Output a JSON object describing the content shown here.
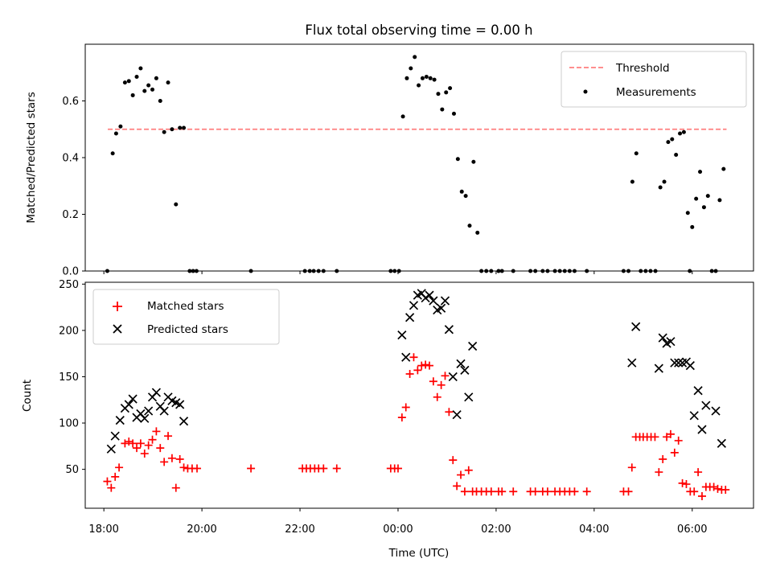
{
  "title": "Flux total observing time = 0.00 h",
  "chart_data": [
    {
      "type": "scatter",
      "panel": "top",
      "ylabel": "Matched/Predicted stars",
      "xlabel": "",
      "ylim": [
        0,
        0.8
      ],
      "yticks": [
        0.0,
        0.2,
        0.4,
        0.6
      ],
      "ytick_labels": [
        "0.0",
        "0.2",
        "0.4",
        "0.6"
      ],
      "grid": false,
      "legend_position": "top-right",
      "threshold": {
        "name": "Threshold",
        "value": 0.5,
        "x_start": 18.08,
        "x_end": 30.7,
        "color": "#ff7f7f"
      },
      "series": [
        {
          "name": "Measurements",
          "color": "#000000",
          "marker": "dot",
          "points": [
            [
              18.07,
              0.0
            ],
            [
              18.18,
              0.415
            ],
            [
              18.25,
              0.485
            ],
            [
              18.34,
              0.51
            ],
            [
              18.43,
              0.665
            ],
            [
              18.51,
              0.67
            ],
            [
              18.59,
              0.62
            ],
            [
              18.67,
              0.685
            ],
            [
              18.75,
              0.715
            ],
            [
              18.83,
              0.635
            ],
            [
              18.91,
              0.655
            ],
            [
              18.99,
              0.64
            ],
            [
              19.07,
              0.68
            ],
            [
              19.15,
              0.6
            ],
            [
              19.23,
              0.49
            ],
            [
              19.31,
              0.665
            ],
            [
              19.39,
              0.5
            ],
            [
              19.47,
              0.235
            ],
            [
              19.55,
              0.505
            ],
            [
              19.63,
              0.505
            ],
            [
              19.75,
              0.0
            ],
            [
              19.82,
              0.0
            ],
            [
              19.89,
              0.0
            ],
            [
              21.0,
              0.0
            ],
            [
              22.1,
              0.0
            ],
            [
              22.2,
              0.0
            ],
            [
              22.28,
              0.0
            ],
            [
              22.38,
              0.0
            ],
            [
              22.48,
              0.0
            ],
            [
              22.75,
              0.0
            ],
            [
              23.85,
              0.0
            ],
            [
              23.93,
              0.0
            ],
            [
              24.02,
              0.0
            ],
            [
              24.1,
              0.545
            ],
            [
              24.18,
              0.68
            ],
            [
              24.26,
              0.715
            ],
            [
              24.34,
              0.755
            ],
            [
              24.42,
              0.655
            ],
            [
              24.5,
              0.68
            ],
            [
              24.58,
              0.685
            ],
            [
              24.66,
              0.68
            ],
            [
              24.74,
              0.675
            ],
            [
              24.82,
              0.625
            ],
            [
              24.9,
              0.57
            ],
            [
              24.98,
              0.63
            ],
            [
              25.06,
              0.645
            ],
            [
              25.14,
              0.555
            ],
            [
              25.22,
              0.395
            ],
            [
              25.3,
              0.28
            ],
            [
              25.38,
              0.265
            ],
            [
              25.46,
              0.16
            ],
            [
              25.54,
              0.385
            ],
            [
              25.62,
              0.135
            ],
            [
              25.7,
              0.0
            ],
            [
              25.8,
              0.0
            ],
            [
              25.9,
              0.0
            ],
            [
              26.05,
              0.0
            ],
            [
              26.12,
              0.0
            ],
            [
              26.35,
              0.0
            ],
            [
              26.7,
              0.0
            ],
            [
              26.8,
              0.0
            ],
            [
              26.95,
              0.0
            ],
            [
              27.05,
              0.0
            ],
            [
              27.2,
              0.0
            ],
            [
              27.3,
              0.0
            ],
            [
              27.4,
              0.0
            ],
            [
              27.5,
              0.0
            ],
            [
              27.6,
              0.0
            ],
            [
              27.85,
              0.0
            ],
            [
              28.6,
              0.0
            ],
            [
              28.7,
              0.0
            ],
            [
              28.78,
              0.315
            ],
            [
              28.86,
              0.415
            ],
            [
              28.95,
              0.0
            ],
            [
              29.05,
              0.0
            ],
            [
              29.15,
              0.0
            ],
            [
              29.25,
              0.0
            ],
            [
              29.35,
              0.295
            ],
            [
              29.43,
              0.315
            ],
            [
              29.51,
              0.455
            ],
            [
              29.59,
              0.465
            ],
            [
              29.67,
              0.41
            ],
            [
              29.75,
              0.485
            ],
            [
              29.83,
              0.49
            ],
            [
              29.91,
              0.205
            ],
            [
              29.95,
              0.0
            ],
            [
              30.0,
              0.155
            ],
            [
              30.08,
              0.255
            ],
            [
              30.16,
              0.35
            ],
            [
              30.24,
              0.225
            ],
            [
              30.32,
              0.265
            ],
            [
              30.4,
              0.0
            ],
            [
              30.48,
              0.0
            ],
            [
              30.56,
              0.25
            ],
            [
              30.64,
              0.36
            ]
          ]
        }
      ]
    },
    {
      "type": "scatter",
      "panel": "bottom",
      "ylabel": "Count",
      "xlabel": "Time (UTC)",
      "ylim": [
        8,
        252
      ],
      "yticks": [
        50,
        100,
        150,
        200,
        250
      ],
      "ytick_labels": [
        "50",
        "100",
        "150",
        "200",
        "250"
      ],
      "xlim": [
        17.62,
        31.25
      ],
      "xticks": [
        18,
        20,
        22,
        24,
        26,
        28,
        30
      ],
      "xtick_labels": [
        "18:00",
        "20:00",
        "22:00",
        "00:00",
        "02:00",
        "04:00",
        "06:00"
      ],
      "grid": false,
      "legend_position": "top-left",
      "series": [
        {
          "name": "Matched stars",
          "color": "#ff0000",
          "marker": "plus",
          "points": [
            [
              18.07,
              37
            ],
            [
              18.15,
              30
            ],
            [
              18.23,
              42
            ],
            [
              18.31,
              52
            ],
            [
              18.43,
              78
            ],
            [
              18.51,
              80
            ],
            [
              18.59,
              78
            ],
            [
              18.67,
              73
            ],
            [
              18.75,
              78
            ],
            [
              18.83,
              67
            ],
            [
              18.91,
              76
            ],
            [
              18.99,
              82
            ],
            [
              19.07,
              91
            ],
            [
              19.15,
              73
            ],
            [
              19.23,
              58
            ],
            [
              19.31,
              86
            ],
            [
              19.39,
              62
            ],
            [
              19.47,
              30
            ],
            [
              19.55,
              61
            ],
            [
              19.63,
              52
            ],
            [
              19.71,
              51
            ],
            [
              19.8,
              51
            ],
            [
              19.9,
              51
            ],
            [
              21.0,
              51
            ],
            [
              22.05,
              51
            ],
            [
              22.13,
              51
            ],
            [
              22.21,
              51
            ],
            [
              22.3,
              51
            ],
            [
              22.38,
              51
            ],
            [
              22.48,
              51
            ],
            [
              22.75,
              51
            ],
            [
              23.85,
              51
            ],
            [
              23.93,
              51
            ],
            [
              24.0,
              51
            ],
            [
              24.08,
              106
            ],
            [
              24.16,
              117
            ],
            [
              24.24,
              153
            ],
            [
              24.32,
              171
            ],
            [
              24.4,
              157
            ],
            [
              24.48,
              162
            ],
            [
              24.56,
              163
            ],
            [
              24.64,
              162
            ],
            [
              24.72,
              145
            ],
            [
              24.8,
              128
            ],
            [
              24.88,
              141
            ],
            [
              24.96,
              151
            ],
            [
              25.04,
              112
            ],
            [
              25.12,
              60
            ],
            [
              25.2,
              32
            ],
            [
              25.28,
              44
            ],
            [
              25.36,
              26
            ],
            [
              25.44,
              49
            ],
            [
              25.52,
              26
            ],
            [
              25.6,
              26
            ],
            [
              25.7,
              26
            ],
            [
              25.8,
              26
            ],
            [
              25.9,
              26
            ],
            [
              26.05,
              26
            ],
            [
              26.12,
              26
            ],
            [
              26.35,
              26
            ],
            [
              26.7,
              26
            ],
            [
              26.8,
              26
            ],
            [
              26.95,
              26
            ],
            [
              27.05,
              26
            ],
            [
              27.2,
              26
            ],
            [
              27.3,
              26
            ],
            [
              27.4,
              26
            ],
            [
              27.5,
              26
            ],
            [
              27.6,
              26
            ],
            [
              27.85,
              26
            ],
            [
              28.6,
              26
            ],
            [
              28.7,
              26
            ],
            [
              28.77,
              52
            ],
            [
              28.85,
              85
            ],
            [
              28.93,
              85
            ],
            [
              29.0,
              85
            ],
            [
              29.08,
              85
            ],
            [
              29.16,
              85
            ],
            [
              29.24,
              85
            ],
            [
              29.32,
              47
            ],
            [
              29.4,
              61
            ],
            [
              29.48,
              85
            ],
            [
              29.56,
              88
            ],
            [
              29.64,
              68
            ],
            [
              29.72,
              81
            ],
            [
              29.8,
              35
            ],
            [
              29.88,
              34
            ],
            [
              29.96,
              26
            ],
            [
              30.04,
              26
            ],
            [
              30.12,
              47
            ],
            [
              30.2,
              21
            ],
            [
              30.28,
              31
            ],
            [
              30.36,
              31
            ],
            [
              30.44,
              31
            ],
            [
              30.52,
              29
            ],
            [
              30.6,
              28
            ],
            [
              30.68,
              28
            ]
          ]
        },
        {
          "name": "Predicted stars",
          "color": "#000000",
          "marker": "x",
          "points": [
            [
              18.15,
              72
            ],
            [
              18.23,
              86
            ],
            [
              18.33,
              103
            ],
            [
              18.43,
              116
            ],
            [
              18.51,
              120
            ],
            [
              18.59,
              126
            ],
            [
              18.67,
              106
            ],
            [
              18.75,
              110
            ],
            [
              18.83,
              105
            ],
            [
              18.91,
              113
            ],
            [
              18.99,
              128
            ],
            [
              19.07,
              133
            ],
            [
              19.15,
              118
            ],
            [
              19.23,
              113
            ],
            [
              19.31,
              128
            ],
            [
              19.39,
              124
            ],
            [
              19.47,
              122
            ],
            [
              19.55,
              120
            ],
            [
              19.63,
              102
            ],
            [
              24.08,
              195
            ],
            [
              24.16,
              171
            ],
            [
              24.24,
              214
            ],
            [
              24.32,
              227
            ],
            [
              24.4,
              238
            ],
            [
              24.48,
              240
            ],
            [
              24.56,
              235
            ],
            [
              24.64,
              238
            ],
            [
              24.72,
              232
            ],
            [
              24.8,
              222
            ],
            [
              24.88,
              224
            ],
            [
              24.96,
              232
            ],
            [
              25.04,
              201
            ],
            [
              25.12,
              150
            ],
            [
              25.2,
              109
            ],
            [
              25.28,
              164
            ],
            [
              25.36,
              157
            ],
            [
              25.44,
              128
            ],
            [
              25.52,
              183
            ],
            [
              28.77,
              165
            ],
            [
              28.85,
              204
            ],
            [
              29.32,
              159
            ],
            [
              29.4,
              192
            ],
            [
              29.48,
              186
            ],
            [
              29.56,
              188
            ],
            [
              29.64,
              165
            ],
            [
              29.72,
              165
            ],
            [
              29.8,
              165
            ],
            [
              29.88,
              166
            ],
            [
              29.96,
              162
            ],
            [
              30.04,
              108
            ],
            [
              30.12,
              135
            ],
            [
              30.2,
              93
            ],
            [
              30.28,
              119
            ],
            [
              30.48,
              113
            ],
            [
              30.6,
              78
            ]
          ]
        }
      ]
    }
  ]
}
